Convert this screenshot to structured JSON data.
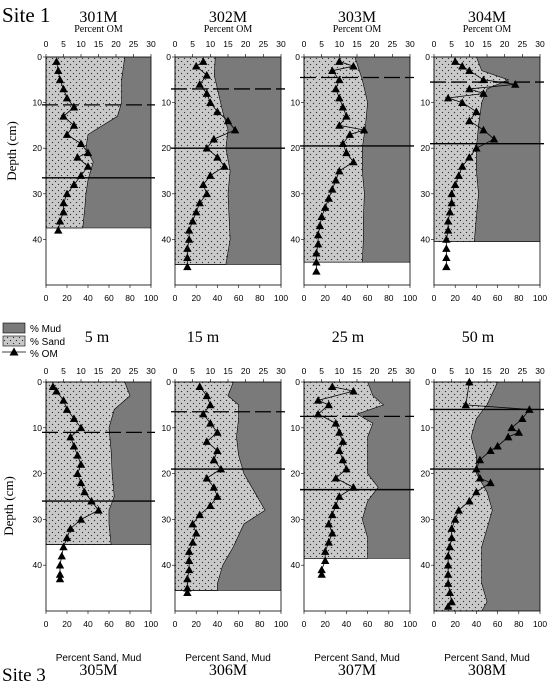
{
  "figure": {
    "site_top_label": "Site 1",
    "site_bottom_label": "Site 3",
    "top_axis_label": "Percent OM",
    "bottom_axis_label": "Percent Sand, Mud",
    "ylabel": "Depth (cm)",
    "legend": [
      {
        "label": "% Mud",
        "kind": "mud"
      },
      {
        "label": "% Sand",
        "kind": "sand"
      },
      {
        "label": "% OM",
        "kind": "om"
      }
    ],
    "depth_headers": [
      "5 m",
      "15 m",
      "25 m",
      "50 m"
    ],
    "colors": {
      "mud": "#7a7a7a",
      "sand": "#c9c9c9",
      "core_white": "#ffffff",
      "line": "#000000"
    }
  },
  "chart_data": [
    {
      "type": "area",
      "title": "301M",
      "site": "Site 1",
      "water_depth": "5 m",
      "om_axis": {
        "label": "Percent OM",
        "lim": [
          0,
          30
        ],
        "ticks": [
          0,
          5,
          10,
          15,
          20,
          25,
          30
        ]
      },
      "sand_mud_axis": {
        "label": "Percent Sand, Mud",
        "lim": [
          0,
          100
        ],
        "ticks": [
          0,
          20,
          40,
          60,
          80,
          100
        ]
      },
      "depth_axis": {
        "label": "Depth (cm)",
        "lim": [
          0,
          50
        ],
        "ticks": [
          0,
          10,
          20,
          30,
          40
        ]
      },
      "core_bottom_cm": 37.5,
      "sand_boundary": {
        "depth": [
          0,
          5,
          10,
          13,
          17,
          20,
          23,
          27,
          30,
          33,
          37.5
        ],
        "sand": [
          75,
          72,
          72,
          68,
          40,
          38,
          45,
          40,
          38,
          37,
          35
        ]
      },
      "om": {
        "depth": [
          1,
          3,
          5,
          7,
          9,
          11,
          13,
          15,
          17,
          19,
          21,
          22,
          24,
          26,
          28,
          30,
          32,
          34,
          36,
          38
        ],
        "value": [
          3,
          3.5,
          4,
          5,
          6,
          8,
          5,
          8,
          6,
          10,
          12,
          9,
          12,
          10,
          8,
          6,
          5,
          5,
          4,
          3.5
        ]
      },
      "horizontal_lines": [
        {
          "depth": 10.5,
          "style": "dashed"
        },
        {
          "depth": 26.5,
          "style": "solid"
        }
      ]
    },
    {
      "type": "area",
      "title": "302M",
      "site": "Site 1",
      "water_depth": "15 m",
      "om_axis": {
        "label": "Percent OM",
        "lim": [
          0,
          30
        ],
        "ticks": [
          0,
          5,
          10,
          15,
          20,
          25,
          30
        ]
      },
      "sand_mud_axis": {
        "label": "Percent Sand, Mud",
        "lim": [
          0,
          100
        ],
        "ticks": [
          0,
          20,
          40,
          60,
          80,
          100
        ]
      },
      "depth_axis": {
        "label": "Depth (cm)",
        "lim": [
          0,
          50
        ],
        "ticks": [
          0,
          10,
          20,
          30,
          40
        ]
      },
      "core_bottom_cm": 45.5,
      "sand_boundary": {
        "depth": [
          0,
          4,
          7,
          12,
          16,
          20,
          25,
          30,
          40,
          45.5
        ],
        "sand": [
          38,
          37,
          40,
          45,
          50,
          48,
          52,
          50,
          52,
          48
        ]
      },
      "om": {
        "depth": [
          1,
          2,
          4,
          6,
          8,
          10,
          12,
          14,
          16,
          18,
          20,
          22,
          24,
          26,
          28,
          30,
          32,
          34,
          36,
          38,
          40,
          42,
          44,
          46
        ],
        "value": [
          8,
          6,
          9,
          7,
          9,
          10,
          12,
          15,
          17,
          11,
          9,
          12,
          14,
          10,
          8,
          9,
          7,
          6,
          5,
          4,
          4,
          3.5,
          3.5,
          3.5
        ]
      },
      "horizontal_lines": [
        {
          "depth": 7,
          "style": "dashed"
        },
        {
          "depth": 20,
          "style": "solid"
        }
      ]
    },
    {
      "type": "area",
      "title": "303M",
      "site": "Site 1",
      "water_depth": "25 m",
      "om_axis": {
        "label": "Percent OM",
        "lim": [
          0,
          30
        ],
        "ticks": [
          0,
          5,
          10,
          15,
          20,
          25,
          30
        ]
      },
      "sand_mud_axis": {
        "label": "Percent Sand, Mud",
        "lim": [
          0,
          100
        ],
        "ticks": [
          0,
          20,
          40,
          60,
          80,
          100
        ]
      },
      "depth_axis": {
        "label": "Depth (cm)",
        "lim": [
          0,
          50
        ],
        "ticks": [
          0,
          10,
          20,
          30,
          40
        ]
      },
      "core_bottom_cm": 45,
      "sand_boundary": {
        "depth": [
          0,
          5,
          10,
          15,
          20,
          25,
          30,
          35,
          40,
          45
        ],
        "sand": [
          48,
          55,
          60,
          58,
          55,
          55,
          57,
          56,
          56,
          55
        ]
      },
      "om": {
        "depth": [
          1,
          2,
          3,
          5,
          7,
          9,
          11,
          13,
          15,
          16,
          17,
          19,
          21,
          23,
          25,
          27,
          29,
          31,
          33,
          35,
          37,
          39,
          41,
          43,
          45,
          47
        ],
        "value": [
          10,
          14,
          8,
          10,
          9,
          10,
          11,
          12,
          10,
          17,
          13,
          11,
          12,
          14,
          10,
          9,
          8,
          7,
          6,
          5,
          4.5,
          4,
          4,
          3.5,
          3.5,
          3.5
        ]
      },
      "horizontal_lines": [
        {
          "depth": 4.5,
          "style": "dashed"
        },
        {
          "depth": 19.5,
          "style": "solid"
        }
      ]
    },
    {
      "type": "area",
      "title": "304M",
      "site": "Site 1",
      "water_depth": "50 m",
      "om_axis": {
        "label": "Percent OM",
        "lim": [
          0,
          30
        ],
        "ticks": [
          0,
          5,
          10,
          15,
          20,
          25,
          30
        ]
      },
      "sand_mud_axis": {
        "label": "Percent Sand, Mud",
        "lim": [
          0,
          100
        ],
        "ticks": [
          0,
          20,
          40,
          60,
          80,
          100
        ]
      },
      "depth_axis": {
        "label": "Depth (cm)",
        "lim": [
          0,
          50
        ],
        "ticks": [
          0,
          10,
          20,
          30,
          40
        ]
      },
      "core_bottom_cm": 40.5,
      "sand_boundary": {
        "depth": [
          0,
          3,
          5,
          7,
          10,
          15,
          20,
          25,
          30,
          35,
          40.5
        ],
        "sand": [
          40,
          45,
          70,
          50,
          45,
          42,
          40,
          40,
          42,
          40,
          38
        ]
      },
      "om": {
        "depth": [
          1,
          2,
          3,
          5,
          6,
          7,
          8,
          9,
          10,
          12,
          14,
          16,
          18,
          20,
          22,
          24,
          26,
          28,
          30,
          32,
          34,
          36,
          38,
          40,
          42,
          44,
          46
        ],
        "value": [
          6,
          8,
          10,
          14,
          23,
          10,
          14,
          4,
          8,
          12,
          10,
          14,
          17,
          12,
          10,
          8,
          7,
          6,
          5,
          5,
          4.5,
          4,
          4,
          3.5,
          3.5,
          3.5,
          3.5
        ]
      },
      "horizontal_lines": [
        {
          "depth": 5.5,
          "style": "dashed"
        },
        {
          "depth": 19,
          "style": "solid"
        }
      ]
    },
    {
      "type": "area",
      "title": "305M",
      "site": "Site 3",
      "water_depth": "5 m",
      "om_axis": {
        "label": "Percent OM",
        "lim": [
          0,
          30
        ],
        "ticks": [
          0,
          5,
          10,
          15,
          20,
          25,
          30
        ]
      },
      "sand_mud_axis": {
        "label": "Percent Sand, Mud",
        "lim": [
          0,
          100
        ],
        "ticks": [
          0,
          20,
          40,
          60,
          80,
          100
        ]
      },
      "depth_axis": {
        "label": "Depth (cm)",
        "lim": [
          0,
          50
        ],
        "ticks": [
          0,
          10,
          20,
          30,
          40
        ]
      },
      "core_bottom_cm": 35.5,
      "sand_boundary": {
        "depth": [
          0,
          3,
          6,
          10,
          15,
          20,
          25,
          28,
          31,
          35.5
        ],
        "sand": [
          75,
          80,
          65,
          60,
          62,
          63,
          65,
          60,
          60,
          62
        ]
      },
      "om": {
        "depth": [
          1,
          2,
          4,
          6,
          8,
          10,
          12,
          14,
          16,
          18,
          20,
          22,
          24,
          26,
          28,
          30,
          32,
          34,
          36,
          38,
          40,
          42,
          43
        ],
        "value": [
          2,
          3,
          5,
          6,
          8,
          10,
          7,
          8,
          9,
          10,
          9,
          10,
          11,
          13,
          15,
          10,
          7,
          6,
          5,
          4.5,
          4,
          4,
          4
        ]
      },
      "horizontal_lines": [
        {
          "depth": 11,
          "style": "dashed"
        },
        {
          "depth": 26,
          "style": "solid"
        }
      ]
    },
    {
      "type": "area",
      "title": "306M",
      "site": "Site 3",
      "water_depth": "15 m",
      "om_axis": {
        "label": "Percent OM",
        "lim": [
          0,
          30
        ],
        "ticks": [
          0,
          5,
          10,
          15,
          20,
          25,
          30
        ]
      },
      "sand_mud_axis": {
        "label": "Percent Sand, Mud",
        "lim": [
          0,
          100
        ],
        "ticks": [
          0,
          20,
          40,
          60,
          80,
          100
        ]
      },
      "depth_axis": {
        "label": "Depth (cm)",
        "lim": [
          0,
          50
        ],
        "ticks": [
          0,
          10,
          20,
          30,
          40
        ]
      },
      "core_bottom_cm": 45.5,
      "sand_boundary": {
        "depth": [
          0,
          3,
          5,
          8,
          12,
          16,
          20,
          24,
          28,
          31,
          36,
          40,
          44,
          45.5
        ],
        "sand": [
          55,
          50,
          60,
          60,
          58,
          60,
          65,
          75,
          85,
          65,
          55,
          45,
          40,
          40
        ]
      },
      "om": {
        "depth": [
          1,
          3,
          5,
          7,
          9,
          11,
          13,
          15,
          17,
          19,
          21,
          23,
          25,
          27,
          29,
          31,
          33,
          35,
          37,
          39,
          41,
          43,
          45,
          46
        ],
        "value": [
          7,
          9,
          10,
          8,
          10,
          12,
          9,
          12,
          11,
          13,
          9,
          11,
          12,
          10,
          7,
          5,
          6,
          5,
          4,
          4,
          4,
          3.5,
          3.5,
          3.5
        ]
      },
      "horizontal_lines": [
        {
          "depth": 6.5,
          "style": "dashed"
        },
        {
          "depth": 19,
          "style": "solid"
        }
      ]
    },
    {
      "type": "area",
      "title": "307M",
      "site": "Site 3",
      "water_depth": "25 m",
      "om_axis": {
        "label": "Percent OM",
        "lim": [
          0,
          30
        ],
        "ticks": [
          0,
          5,
          10,
          15,
          20,
          25,
          30
        ]
      },
      "sand_mud_axis": {
        "label": "Percent Sand, Mud",
        "lim": [
          0,
          100
        ],
        "ticks": [
          0,
          20,
          40,
          60,
          80,
          100
        ]
      },
      "depth_axis": {
        "label": "Depth (cm)",
        "lim": [
          0,
          50
        ],
        "ticks": [
          0,
          10,
          20,
          30,
          40
        ]
      },
      "core_bottom_cm": 38.5,
      "sand_boundary": {
        "depth": [
          0,
          3,
          5,
          7,
          9,
          12,
          16,
          20,
          23,
          26,
          30,
          34,
          38.5
        ],
        "sand": [
          60,
          65,
          75,
          50,
          65,
          60,
          60,
          60,
          70,
          60,
          55,
          60,
          60
        ]
      },
      "om": {
        "depth": [
          1,
          2,
          4,
          5,
          7,
          9,
          11,
          13,
          15,
          17,
          19,
          21,
          23,
          25,
          27,
          29,
          31,
          33,
          35,
          37,
          39,
          41,
          42
        ],
        "value": [
          8,
          14,
          4,
          7,
          4,
          9,
          10,
          11,
          10,
          11,
          12,
          9,
          14,
          10,
          9,
          8,
          7,
          8,
          7,
          6,
          6,
          5,
          5
        ]
      },
      "horizontal_lines": [
        {
          "depth": 7.5,
          "style": "dashed"
        },
        {
          "depth": 23.5,
          "style": "solid"
        }
      ]
    },
    {
      "type": "area",
      "title": "308M",
      "site": "Site 3",
      "water_depth": "50 m",
      "om_axis": {
        "label": "Percent OM",
        "lim": [
          0,
          30
        ],
        "ticks": [
          0,
          5,
          10,
          15,
          20,
          25,
          30
        ]
      },
      "sand_mud_axis": {
        "label": "Percent Sand, Mud",
        "lim": [
          0,
          100
        ],
        "ticks": [
          0,
          20,
          40,
          60,
          80,
          100
        ]
      },
      "depth_axis": {
        "label": "Depth (cm)",
        "lim": [
          0,
          50
        ],
        "ticks": [
          0,
          10,
          20,
          30,
          40
        ]
      },
      "core_bottom_cm": 50,
      "sand_boundary": {
        "depth": [
          0,
          5,
          8,
          12,
          16,
          20,
          24,
          28,
          32,
          36,
          40,
          44,
          48,
          50
        ],
        "sand": [
          60,
          50,
          40,
          35,
          40,
          40,
          50,
          55,
          50,
          45,
          45,
          45,
          50,
          45
        ]
      },
      "om": {
        "depth": [
          0,
          5,
          6,
          8,
          10,
          11,
          12,
          14,
          15,
          17,
          19,
          21,
          22,
          24,
          26,
          28,
          30,
          32,
          34,
          36,
          38,
          40,
          42,
          44,
          46,
          48,
          49
        ],
        "value": [
          10,
          9,
          27,
          25,
          22,
          24,
          21,
          18,
          16,
          13,
          12,
          13,
          16,
          12,
          10,
          7,
          6,
          5,
          5,
          4.5,
          4,
          4,
          4,
          4,
          4.5,
          5,
          4
        ]
      },
      "horizontal_lines": [
        {
          "depth": 6,
          "style": "solid"
        },
        {
          "depth": 19,
          "style": "solid"
        }
      ]
    }
  ]
}
